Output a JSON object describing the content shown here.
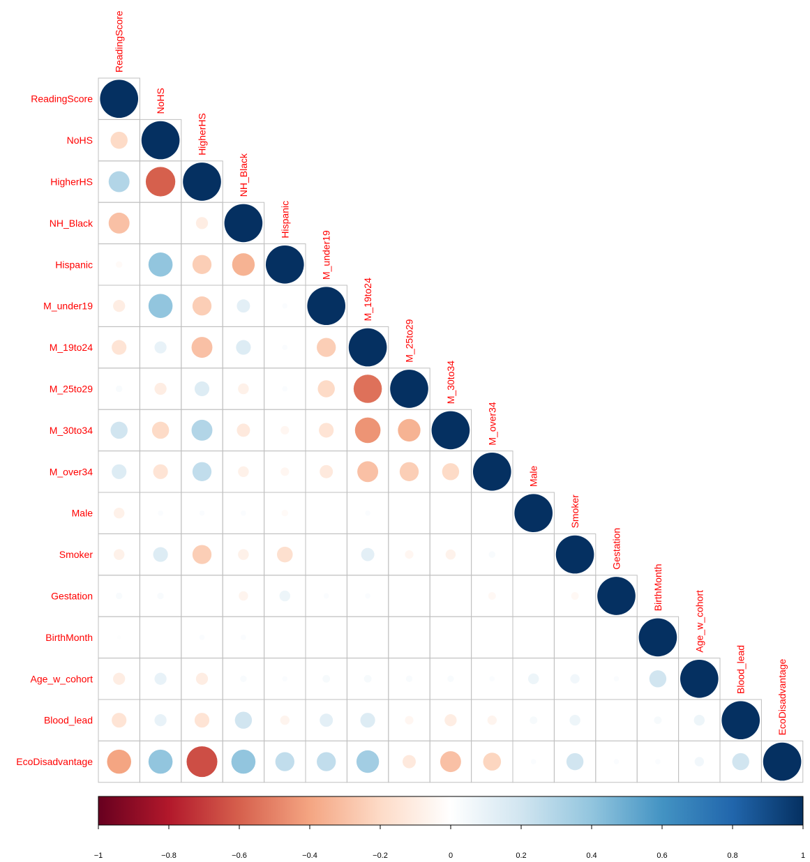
{
  "chart_data": {
    "type": "heatmap",
    "style": "circle-correlogram-lower-triangle",
    "variables": [
      "ReadingScore",
      "NoHS",
      "HigherHS",
      "NH_Black",
      "Hispanic",
      "M_under19",
      "M_19to24",
      "M_25to29",
      "M_30to34",
      "M_over34",
      "Male",
      "Smoker",
      "Gestation",
      "BirthMonth",
      "Age_w_cohort",
      "Blood_lead",
      "EcoDisadvantage"
    ],
    "matrix": [
      [
        1.0
      ],
      [
        -0.2,
        1.0
      ],
      [
        0.3,
        -0.6,
        1.0
      ],
      [
        -0.3,
        0.0,
        -0.1,
        1.0
      ],
      [
        -0.03,
        0.4,
        -0.25,
        -0.35,
        1.0
      ],
      [
        -0.1,
        0.4,
        -0.25,
        0.12,
        0.02,
        1.0
      ],
      [
        -0.15,
        0.1,
        -0.3,
        0.15,
        0.02,
        -0.25,
        1.0
      ],
      [
        0.03,
        -0.1,
        0.15,
        -0.08,
        0.02,
        -0.2,
        -0.55,
        1.0
      ],
      [
        0.2,
        -0.2,
        0.3,
        -0.12,
        -0.05,
        -0.15,
        -0.45,
        -0.35,
        1.0
      ],
      [
        0.15,
        -0.15,
        0.25,
        -0.08,
        -0.05,
        -0.12,
        -0.3,
        -0.25,
        -0.2,
        1.0
      ],
      [
        -0.08,
        0.02,
        0.02,
        0.02,
        -0.03,
        0.0,
        0.02,
        0.0,
        0.0,
        0.0,
        1.0
      ],
      [
        -0.08,
        0.15,
        -0.25,
        -0.08,
        -0.17,
        0.0,
        0.12,
        -0.05,
        -0.07,
        0.03,
        0.0,
        1.0
      ],
      [
        0.03,
        0.03,
        0.0,
        -0.06,
        0.08,
        0.02,
        0.02,
        0.0,
        0.0,
        -0.04,
        0.0,
        -0.04,
        1.0
      ],
      [
        0.01,
        0.0,
        0.02,
        0.02,
        0.0,
        0.0,
        0.0,
        0.0,
        0.0,
        0.0,
        0.0,
        0.0,
        0.0,
        1.0
      ],
      [
        -0.1,
        0.1,
        -0.1,
        0.03,
        0.02,
        0.04,
        0.04,
        0.03,
        0.03,
        0.02,
        0.08,
        0.06,
        0.02,
        0.2,
        1.0
      ],
      [
        -0.15,
        0.1,
        -0.15,
        0.2,
        -0.06,
        0.12,
        0.15,
        -0.05,
        -0.1,
        -0.06,
        0.04,
        0.08,
        0.0,
        0.04,
        0.08,
        1.0
      ],
      [
        -0.4,
        0.4,
        -0.65,
        0.4,
        0.25,
        0.25,
        0.35,
        -0.12,
        -0.3,
        -0.22,
        0.02,
        0.2,
        0.02,
        0.02,
        0.06,
        0.2,
        1.0
      ]
    ],
    "color_scale": {
      "min": -1,
      "max": 1,
      "ticks": [
        "−1",
        "−0.8",
        "−0.6",
        "−0.4",
        "−0.2",
        "0",
        "0.2",
        "0.4",
        "0.6",
        "0.8",
        "1"
      ],
      "colors": [
        "#67001f",
        "#b2182b",
        "#d6604d",
        "#f4a582",
        "#fddbc7",
        "#ffffff",
        "#d1e5f0",
        "#92c5de",
        "#4393c3",
        "#2166ac",
        "#053061"
      ]
    },
    "label_color": "#ff0000",
    "grid_color": "#bfbfbf"
  }
}
